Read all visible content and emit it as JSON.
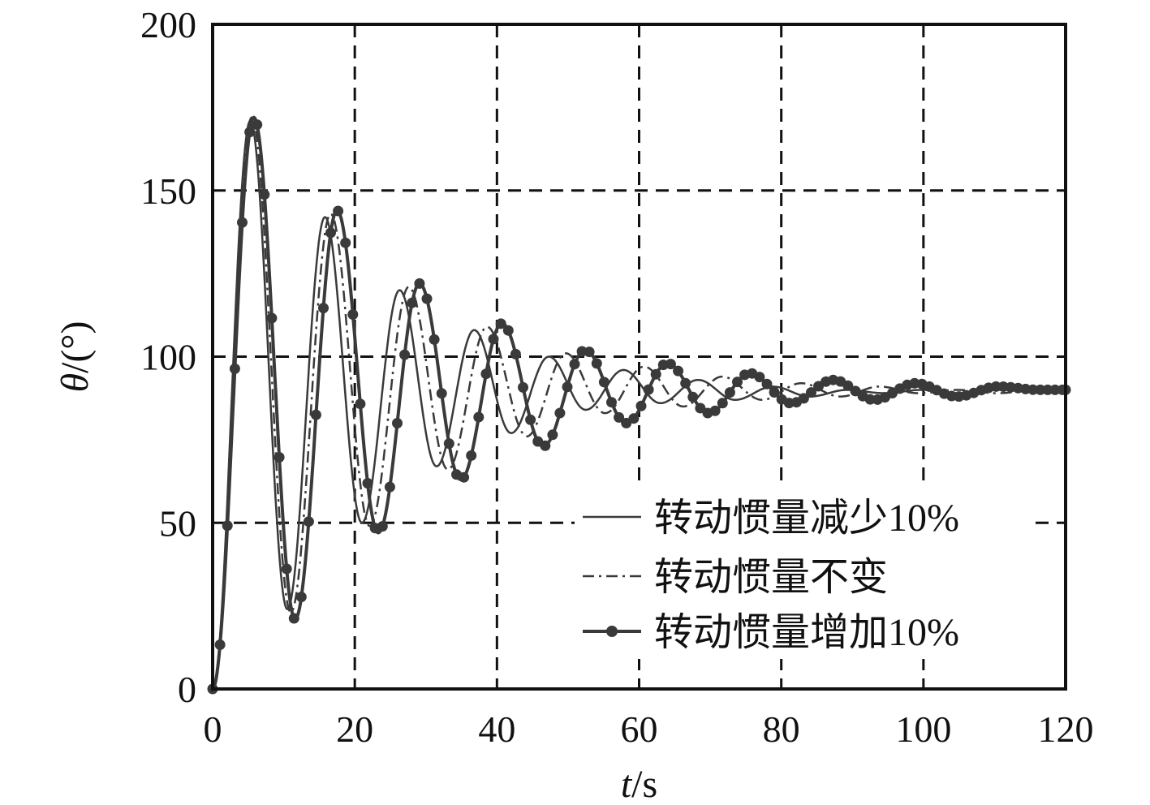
{
  "chart_data": {
    "type": "line",
    "title": "",
    "xlabel": {
      "var": "t",
      "unit": "/s"
    },
    "ylabel": {
      "var": "θ",
      "unit": "/(°)"
    },
    "xlim": [
      0,
      120
    ],
    "ylim": [
      0,
      200
    ],
    "x_ticks": [
      "0",
      "20",
      "40",
      "60",
      "80",
      "100",
      "120"
    ],
    "y_ticks": [
      "0",
      "50",
      "100",
      "150",
      "200"
    ],
    "grid": true,
    "legend_position": "bottom-right",
    "colors": {
      "line": "#3a3a3a",
      "grid": "#111111",
      "axis": "#111111"
    },
    "series": [
      {
        "name": "转动惯量减少10%",
        "style": "solid",
        "x": [
          0,
          5.3,
          10.5,
          15.8,
          21.0,
          26.3,
          31.5,
          36.8,
          42.0,
          47.3,
          52.5,
          57.8,
          63.0,
          68.3,
          73.5,
          78.8,
          84.0,
          89.3,
          94.5,
          99.8,
          105.0,
          110.3,
          115.5,
          120
        ],
        "y": [
          0,
          171,
          24,
          142,
          50,
          120,
          67,
          108,
          77,
          100,
          84,
          96,
          86,
          93,
          87,
          91,
          88,
          90,
          89,
          90,
          89,
          90,
          90,
          90
        ]
      },
      {
        "name": "转动惯量不变",
        "style": "dashdot",
        "x": [
          0,
          5.5,
          11.0,
          16.6,
          22.1,
          27.6,
          33.1,
          38.6,
          44.2,
          49.7,
          55.2,
          60.7,
          66.2,
          71.7,
          77.3,
          82.8,
          88.3,
          93.8,
          99.3,
          104.8,
          110.4,
          115.9,
          120
        ],
        "y": [
          0,
          172,
          23,
          143,
          49,
          121,
          66,
          109,
          76,
          101,
          83,
          97,
          85,
          94,
          87,
          92,
          88,
          91,
          89,
          90,
          89,
          90,
          90
        ]
      },
      {
        "name": "转动惯量增加10%",
        "style": "solid-dots",
        "x": [
          0,
          5.8,
          11.6,
          17.5,
          23.3,
          29.1,
          34.9,
          40.7,
          46.5,
          52.4,
          58.2,
          64.0,
          69.8,
          75.6,
          81.4,
          87.3,
          93.1,
          98.9,
          104.7,
          110.5,
          116.3,
          120
        ],
        "y": [
          0,
          172,
          21,
          144,
          47,
          122,
          63,
          110,
          73,
          102,
          80,
          98,
          83,
          95,
          86,
          93,
          87,
          92,
          88,
          91,
          90,
          90
        ]
      }
    ]
  }
}
